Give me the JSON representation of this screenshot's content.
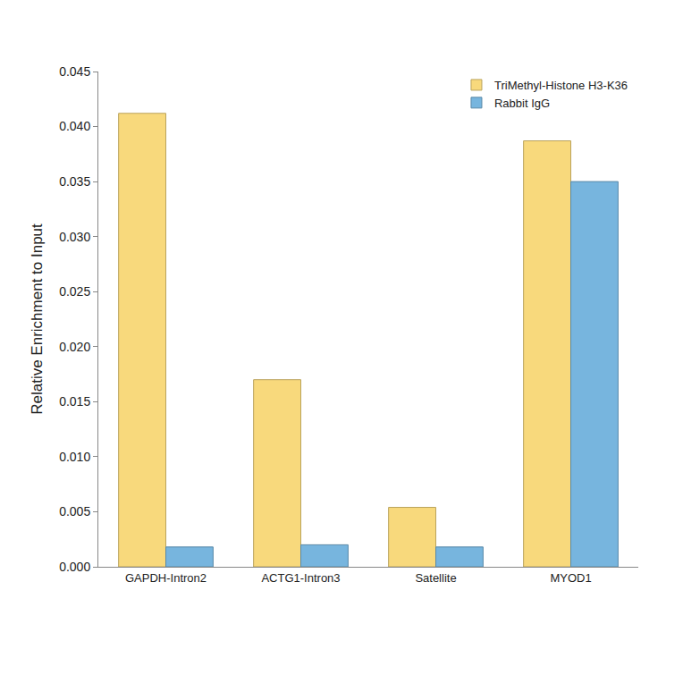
{
  "chart_data": {
    "type": "bar",
    "y_label": "Relative Enrichment to Input",
    "categories": [
      "GAPDH-Intron2",
      "ACTG1-Intron3",
      "Satellite",
      "MYOD1"
    ],
    "series": [
      {
        "name": "TriMethyl-Histone H3-K36",
        "color": "#f8d97c",
        "values": [
          0.0412,
          0.017,
          0.0054,
          0.0387
        ]
      },
      {
        "name": "Rabbit IgG",
        "color": "#77b5de",
        "values": [
          0.0018,
          0.002,
          0.0018,
          0.035
        ]
      }
    ],
    "ylim": [
      0,
      0.045
    ],
    "yticks": [
      {
        "value": 0,
        "label": "0.000"
      },
      0.005,
      {
        "value": 0.01,
        "label": "0.010"
      },
      0.015,
      {
        "value": 0.02,
        "label": "0.020"
      },
      0.025,
      {
        "value": 0.03,
        "label": "0.030"
      },
      0.035,
      {
        "value": 0.04,
        "label": "0.040"
      },
      0.045
    ],
    "grid": false,
    "legend": "top right"
  }
}
